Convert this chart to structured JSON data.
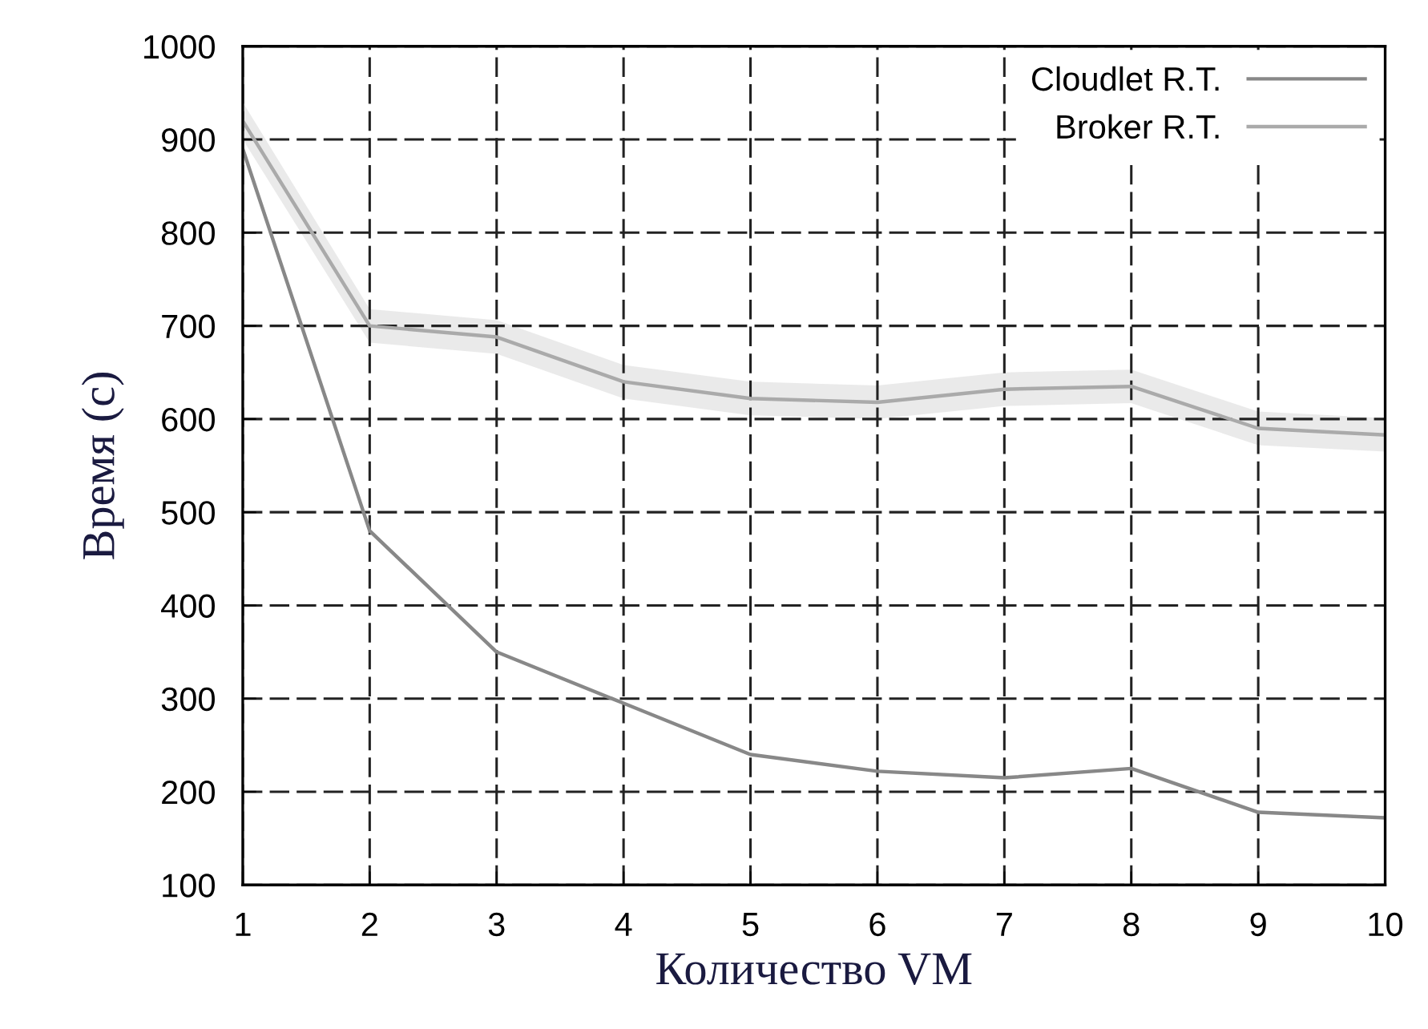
{
  "chart_data": {
    "type": "line",
    "xlabel": "Количество VM",
    "ylabel": "Время (с)",
    "x": [
      1,
      2,
      3,
      4,
      5,
      6,
      7,
      8,
      9,
      10
    ],
    "series": [
      {
        "name": "Cloudlet R.T.",
        "color": "#888888",
        "values": [
          890,
          480,
          350,
          295,
          240,
          222,
          215,
          225,
          178,
          172
        ]
      },
      {
        "name": "Broker R.T.",
        "color": "#aaaaaa",
        "values": [
          920,
          700,
          688,
          640,
          622,
          618,
          632,
          635,
          590,
          583
        ],
        "lower": [
          900,
          682,
          670,
          622,
          604,
          600,
          614,
          617,
          572,
          565
        ],
        "upper": [
          940,
          718,
          706,
          658,
          640,
          636,
          650,
          653,
          608,
          601
        ]
      }
    ],
    "xlim": [
      1,
      10
    ],
    "xticks": [
      1,
      2,
      3,
      4,
      5,
      6,
      7,
      8,
      9,
      10
    ],
    "ylim": [
      100,
      1000
    ],
    "yticks": [
      100,
      200,
      300,
      400,
      500,
      600,
      700,
      800,
      900,
      1000
    ],
    "grid": true,
    "legend": "top right",
    "marker": "none",
    "line_style": "solid"
  }
}
